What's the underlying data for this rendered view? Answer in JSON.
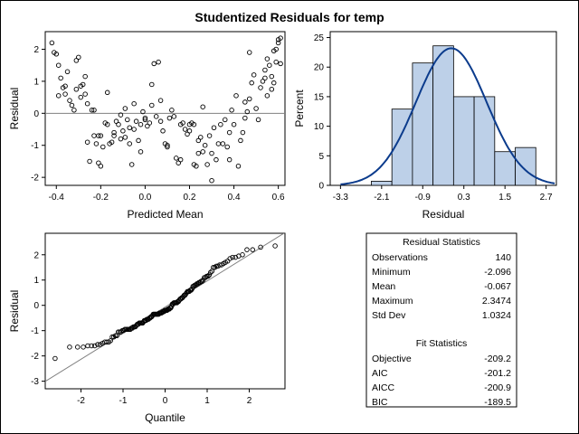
{
  "title": "Studentized Residuals for temp",
  "chart_data": [
    {
      "type": "scatter",
      "xlabel": "Predicted Mean",
      "ylabel": "Residual",
      "xlim": [
        -0.45,
        0.63
      ],
      "ylim": [
        -2.25,
        2.55
      ],
      "xticks": [
        "-0.4",
        "-0.2",
        "0.0",
        "0.2",
        "0.4",
        "0.6"
      ],
      "yticks": [
        "-2",
        "-1",
        "0",
        "1",
        "2"
      ],
      "reference_line_y": 0,
      "points": [
        [
          -0.42,
          2.2
        ],
        [
          -0.41,
          1.9
        ],
        [
          -0.4,
          1.85
        ],
        [
          -0.39,
          1.5
        ],
        [
          -0.38,
          1.1
        ],
        [
          -0.39,
          0.55
        ],
        [
          -0.37,
          0.8
        ],
        [
          -0.36,
          0.85
        ],
        [
          -0.35,
          1.3
        ],
        [
          -0.36,
          0.6
        ],
        [
          -0.34,
          0.4
        ],
        [
          -0.33,
          0.25
        ],
        [
          -0.32,
          0.1
        ],
        [
          -0.31,
          1.65
        ],
        [
          -0.3,
          1.75
        ],
        [
          -0.31,
          0.75
        ],
        [
          -0.29,
          0.85
        ],
        [
          -0.28,
          0.9
        ],
        [
          -0.29,
          0.5
        ],
        [
          -0.27,
          1.15
        ],
        [
          -0.27,
          0.6
        ],
        [
          -0.26,
          0.3
        ],
        [
          -0.26,
          -0.9
        ],
        [
          -0.25,
          -1.5
        ],
        [
          -0.24,
          0.1
        ],
        [
          -0.23,
          0.1
        ],
        [
          -0.23,
          -0.7
        ],
        [
          -0.22,
          -0.95
        ],
        [
          -0.21,
          -1.55
        ],
        [
          -0.21,
          -0.7
        ],
        [
          -0.2,
          -1.65
        ],
        [
          -0.2,
          -0.7
        ],
        [
          -0.19,
          -1.05
        ],
        [
          -0.18,
          -0.3
        ],
        [
          -0.17,
          0.65
        ],
        [
          -0.17,
          -0.35
        ],
        [
          -0.16,
          -0.95
        ],
        [
          -0.15,
          -0.9
        ],
        [
          -0.14,
          -0.7
        ],
        [
          -0.14,
          -0.6
        ],
        [
          -0.13,
          -0.25
        ],
        [
          -0.12,
          -0.35
        ],
        [
          -0.11,
          -0.8
        ],
        [
          -0.11,
          -0.05
        ],
        [
          -0.1,
          -0.55
        ],
        [
          -0.09,
          0.15
        ],
        [
          -0.09,
          -0.75
        ],
        [
          -0.08,
          -0.2
        ],
        [
          -0.07,
          -0.45
        ],
        [
          -0.07,
          -0.95
        ],
        [
          -0.06,
          -1.6
        ],
        [
          -0.05,
          -0.5
        ],
        [
          -0.05,
          0.3
        ],
        [
          -0.04,
          -0.25
        ],
        [
          -0.03,
          -0.85
        ],
        [
          -0.02,
          -1.2
        ],
        [
          -0.02,
          -0.35
        ],
        [
          -0.01,
          0.05
        ],
        [
          0.0,
          -0.15
        ],
        [
          0.0,
          -0.2
        ],
        [
          0.01,
          -0.4
        ],
        [
          0.02,
          -0.3
        ],
        [
          0.03,
          0.9
        ],
        [
          0.03,
          0.25
        ],
        [
          0.04,
          1.55
        ],
        [
          0.05,
          -0.1
        ],
        [
          0.06,
          1.6
        ],
        [
          0.07,
          0.4
        ],
        [
          0.07,
          -0.25
        ],
        [
          0.08,
          -0.55
        ],
        [
          0.09,
          -0.95
        ],
        [
          0.1,
          -1.0
        ],
        [
          0.1,
          -1.05
        ],
        [
          0.11,
          -0.15
        ],
        [
          0.12,
          0.1
        ],
        [
          0.13,
          -0.1
        ],
        [
          0.14,
          -1.4
        ],
        [
          0.15,
          -1.55
        ],
        [
          0.16,
          -1.45
        ],
        [
          0.16,
          -0.35
        ],
        [
          0.17,
          -0.3
        ],
        [
          0.18,
          -0.5
        ],
        [
          0.19,
          -0.65
        ],
        [
          0.2,
          -0.55
        ],
        [
          0.2,
          -0.35
        ],
        [
          0.21,
          -0.3
        ],
        [
          0.22,
          -0.35
        ],
        [
          0.22,
          -1.6
        ],
        [
          0.23,
          -1.65
        ],
        [
          0.24,
          -1.25
        ],
        [
          0.24,
          -0.85
        ],
        [
          0.25,
          -0.75
        ],
        [
          0.26,
          -1.2
        ],
        [
          0.26,
          0.2
        ],
        [
          0.27,
          -1.0
        ],
        [
          0.28,
          -1.6
        ],
        [
          0.29,
          -0.7
        ],
        [
          0.3,
          -1.25
        ],
        [
          0.3,
          -2.1
        ],
        [
          0.31,
          -0.45
        ],
        [
          0.32,
          -1.45
        ],
        [
          0.33,
          -0.95
        ],
        [
          0.34,
          -0.35
        ],
        [
          0.35,
          -0.95
        ],
        [
          0.36,
          -0.2
        ],
        [
          0.37,
          -1.05
        ],
        [
          0.38,
          -0.6
        ],
        [
          0.38,
          -1.45
        ],
        [
          0.39,
          0.1
        ],
        [
          0.4,
          -0.35
        ],
        [
          0.41,
          0.55
        ],
        [
          0.42,
          -1.65
        ],
        [
          0.43,
          -0.85
        ],
        [
          0.44,
          -0.6
        ],
        [
          0.45,
          -0.15
        ],
        [
          0.45,
          0.35
        ],
        [
          0.46,
          0.05
        ],
        [
          0.47,
          0.45
        ],
        [
          0.47,
          1.9
        ],
        [
          0.48,
          0.95
        ],
        [
          0.49,
          1.2
        ],
        [
          0.5,
          0.15
        ],
        [
          0.51,
          -0.2
        ],
        [
          0.52,
          0.8
        ],
        [
          0.53,
          1.0
        ],
        [
          0.54,
          1.35
        ],
        [
          0.54,
          1.1
        ],
        [
          0.55,
          0.55
        ],
        [
          0.55,
          1.7
        ],
        [
          0.56,
          1.5
        ],
        [
          0.57,
          1.15
        ],
        [
          0.57,
          0.75
        ],
        [
          0.58,
          1.95
        ],
        [
          0.58,
          0.95
        ],
        [
          0.59,
          2.0
        ],
        [
          0.59,
          1.6
        ],
        [
          0.6,
          2.3
        ],
        [
          0.6,
          2.2
        ],
        [
          0.61,
          2.35
        ],
        [
          0.61,
          1.55
        ]
      ]
    },
    {
      "type": "bar",
      "xlabel": "Residual",
      "ylabel": "Percent",
      "xlim": [
        -3.6,
        3.0
      ],
      "ylim": [
        0,
        26
      ],
      "xticks": [
        "-3.3",
        "-2.1",
        "-0.9",
        "0.3",
        "1.5",
        "2.7"
      ],
      "yticks": [
        "0",
        "5",
        "10",
        "15",
        "20",
        "25"
      ],
      "bin_edges": [
        -2.4,
        -1.8,
        -1.2,
        -0.6,
        0.0,
        0.6,
        1.2,
        1.8,
        2.4
      ],
      "values": [
        0.7,
        12.9,
        20.7,
        23.6,
        15.0,
        15.0,
        5.7,
        6.4
      ],
      "density_curve": {
        "type": "normal",
        "mean": -0.067,
        "sd": 1.0324
      },
      "curve_range": [
        -3.3,
        2.95
      ]
    },
    {
      "type": "scatter",
      "xlabel": "Quantile",
      "ylabel": "Residual",
      "xlim": [
        -2.85,
        2.85
      ],
      "ylim": [
        -3.3,
        2.85
      ],
      "xticks": [
        "-2",
        "-1",
        "0",
        "1",
        "2"
      ],
      "yticks": [
        "-3",
        "-2",
        "-1",
        "0",
        "1",
        "2"
      ],
      "n": 140,
      "reference_line": {
        "intercept": -0.067,
        "slope": 1.0324
      }
    }
  ],
  "stats": {
    "residual_title": "Residual Statistics",
    "residual_rows": [
      {
        "label": "Observations",
        "value": "140"
      },
      {
        "label": "Minimum",
        "value": "-2.096"
      },
      {
        "label": "Mean",
        "value": "-0.067"
      },
      {
        "label": "Maximum",
        "value": "2.3474"
      },
      {
        "label": "Std Dev",
        "value": "1.0324"
      }
    ],
    "fit_title": "Fit Statistics",
    "fit_rows": [
      {
        "label": "Objective",
        "value": "-209.2"
      },
      {
        "label": "AIC",
        "value": "-201.2"
      },
      {
        "label": "AICC",
        "value": "-200.9"
      },
      {
        "label": "BIC",
        "value": "-189.5"
      }
    ]
  },
  "colors": {
    "axis": "#000000",
    "marker": "#000000",
    "bar_fill": "#bdd0e8",
    "bar_edge": "#000000",
    "curve": "#0b3b8c",
    "ref_line": "#808080"
  }
}
